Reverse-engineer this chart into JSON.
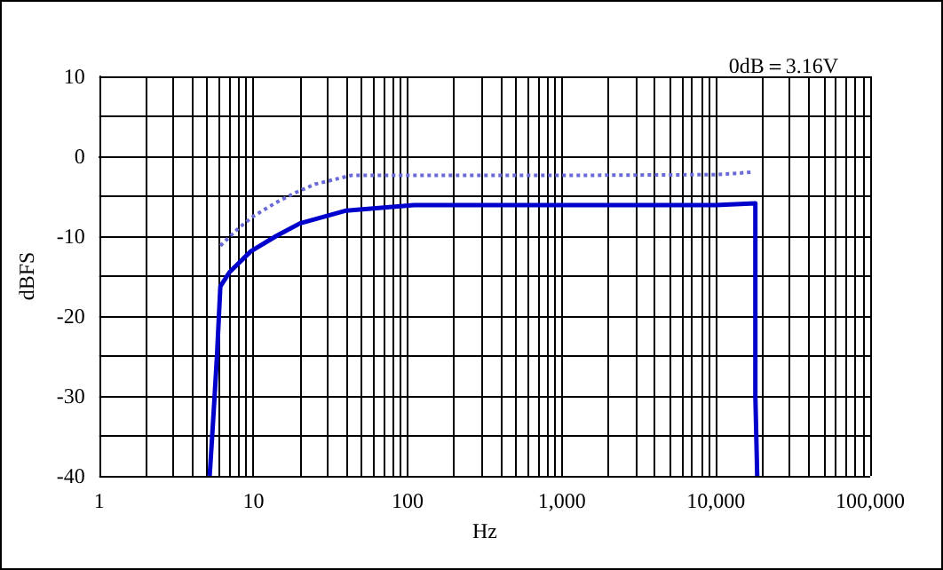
{
  "chart_data": {
    "type": "line",
    "xlabel": "Hz",
    "ylabel": "dBFS",
    "annotations": [
      "0dB＝3.16V"
    ],
    "log": "x",
    "grid": true,
    "marker": "none",
    "xlim": [
      1,
      100000
    ],
    "ylim": [
      -40,
      10
    ],
    "xticks": [
      {
        "value": 1,
        "label": "1"
      },
      {
        "value": 2,
        "label": null
      },
      {
        "value": 3,
        "label": null
      },
      {
        "value": 4,
        "label": null
      },
      {
        "value": 5,
        "label": null
      },
      {
        "value": 6,
        "label": null
      },
      {
        "value": 7,
        "label": null
      },
      {
        "value": 8,
        "label": null
      },
      {
        "value": 9,
        "label": null
      },
      {
        "value": 10,
        "label": "10"
      },
      {
        "value": 20,
        "label": null
      },
      {
        "value": 30,
        "label": null
      },
      {
        "value": 40,
        "label": null
      },
      {
        "value": 50,
        "label": null
      },
      {
        "value": 60,
        "label": null
      },
      {
        "value": 70,
        "label": null
      },
      {
        "value": 80,
        "label": null
      },
      {
        "value": 90,
        "label": null
      },
      {
        "value": 100,
        "label": "100"
      },
      {
        "value": 200,
        "label": null
      },
      {
        "value": 300,
        "label": null
      },
      {
        "value": 400,
        "label": null
      },
      {
        "value": 500,
        "label": null
      },
      {
        "value": 600,
        "label": null
      },
      {
        "value": 700,
        "label": null
      },
      {
        "value": 800,
        "label": null
      },
      {
        "value": 900,
        "label": null
      },
      {
        "value": 1000,
        "label": "1,000"
      },
      {
        "value": 2000,
        "label": null
      },
      {
        "value": 3000,
        "label": null
      },
      {
        "value": 4000,
        "label": null
      },
      {
        "value": 5000,
        "label": null
      },
      {
        "value": 6000,
        "label": null
      },
      {
        "value": 7000,
        "label": null
      },
      {
        "value": 8000,
        "label": null
      },
      {
        "value": 9000,
        "label": null
      },
      {
        "value": 10000,
        "label": "10,000"
      },
      {
        "value": 20000,
        "label": null
      },
      {
        "value": 30000,
        "label": null
      },
      {
        "value": 40000,
        "label": null
      },
      {
        "value": 50000,
        "label": null
      },
      {
        "value": 60000,
        "label": null
      },
      {
        "value": 70000,
        "label": null
      },
      {
        "value": 80000,
        "label": null
      },
      {
        "value": 90000,
        "label": null
      },
      {
        "value": 100000,
        "label": "100,000"
      }
    ],
    "yticks": [
      10,
      {
        "value": 5,
        "label": null
      },
      0,
      {
        "value": -5,
        "label": null
      },
      -10,
      {
        "value": -15,
        "label": null
      },
      -20,
      {
        "value": -25,
        "label": null
      },
      -30,
      {
        "value": -35,
        "label": null
      },
      -40
    ],
    "series": [
      {
        "color": "#6a6ad8",
        "line_style": "dotted",
        "x": [
          6.1,
          8,
          10,
          14,
          18.5,
          25,
          43,
          100,
          1000,
          10000,
          17000
        ],
        "values": [
          -11.2,
          -9,
          -7.5,
          -5.8,
          -4.6,
          -3.5,
          -2.4,
          -2.4,
          -2.4,
          -2.3,
          -2.0
        ]
      },
      {
        "color": "#0000cc",
        "line_style": "solid",
        "x": [
          5.2,
          5.4,
          5.6,
          5.8,
          6.1,
          7,
          9.6,
          14,
          20,
          40,
          110,
          1000,
          10000,
          18000,
          18000,
          18500
        ],
        "values": [
          -40,
          -35,
          -30,
          -25,
          -16.3,
          -14.5,
          -11.9,
          -10,
          -8.4,
          -6.8,
          -6.1,
          -6.1,
          -6.1,
          -5.9,
          -30,
          -40
        ]
      }
    ]
  }
}
